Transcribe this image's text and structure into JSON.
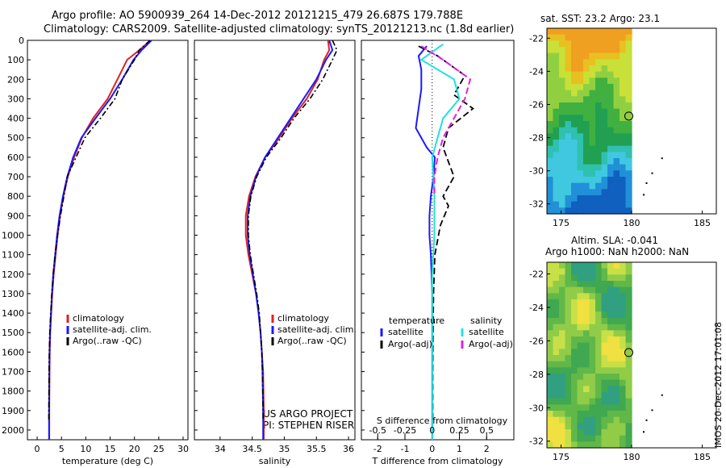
{
  "header": {
    "line1": "Argo profile: AO 5900939_264 14-Dec-2012 20121215_479 26.687S 179.788E",
    "line2": "Climatology: CARS2009. Satellite-adjusted climatology: synTS_20121213.nc (1.8d earlier)"
  },
  "credits": {
    "project": "US ARGO PROJECT",
    "pi": "PI: STEPHEN RISER",
    "stamp": "IMOS 20-Dec-2012 17:01:08"
  },
  "colors": {
    "climatology": "#e02020",
    "satellite": "#1a1aff",
    "argo": "#000000",
    "sal_sat": "#22e0e0",
    "sal_argo": "#e020e0"
  },
  "chart_data": [
    {
      "type": "line",
      "xlabel": "temperature (deg C)",
      "ylim": [
        2050,
        0
      ],
      "xlim": [
        -2,
        31
      ],
      "xticks": [
        0,
        5,
        10,
        15,
        20,
        25,
        30
      ],
      "yticks": [
        0,
        100,
        200,
        300,
        400,
        500,
        600,
        700,
        800,
        900,
        1000,
        1100,
        1200,
        1300,
        1400,
        1500,
        1600,
        1700,
        1800,
        1900,
        2000
      ],
      "legend": [
        "climatology",
        "satellite-adj. clim.",
        "Argo(..raw -QC)"
      ],
      "series": [
        {
          "name": "climatology",
          "x": [
            23.3,
            21,
            18.5,
            16.5,
            14.5,
            11.5,
            9.2,
            7.6,
            6.3,
            5.4,
            4.7,
            4.2,
            3.8,
            3.4,
            3.1,
            2.9,
            2.7,
            2.6,
            2.55,
            2.5,
            2.5
          ],
          "y": [
            0,
            50,
            100,
            200,
            300,
            400,
            500,
            600,
            700,
            800,
            900,
            1000,
            1100,
            1200,
            1300,
            1400,
            1500,
            1600,
            1700,
            1900,
            2050
          ]
        },
        {
          "name": "satellite-adj. clim.",
          "x": [
            23.5,
            21.5,
            19.8,
            17.5,
            15,
            12,
            9.1,
            7.4,
            6.2,
            5.3,
            4.6,
            4.1,
            3.7,
            3.3,
            3.05,
            2.85,
            2.65,
            2.55,
            2.5,
            2.45,
            2.45
          ],
          "y": [
            0,
            50,
            100,
            200,
            300,
            400,
            500,
            600,
            700,
            800,
            900,
            1000,
            1100,
            1200,
            1300,
            1400,
            1500,
            1600,
            1700,
            1900,
            2050
          ]
        },
        {
          "name": "Argo(..raw -QC)",
          "x": [
            23.2,
            21,
            20,
            17.5,
            16,
            13,
            9.8,
            8,
            6.2,
            5.5,
            4.8,
            4.2,
            3.7,
            3.3,
            3.0,
            2.8,
            2.6,
            2.5,
            2.45,
            2.4
          ],
          "y": [
            0,
            50,
            100,
            200,
            300,
            400,
            500,
            600,
            700,
            800,
            900,
            1000,
            1100,
            1200,
            1300,
            1400,
            1500,
            1600,
            1700,
            1950
          ]
        }
      ]
    },
    {
      "type": "line",
      "xlabel": "salinity",
      "ylim": [
        2050,
        0
      ],
      "xlim": [
        33.6,
        36.1
      ],
      "xticks": [
        34,
        34.5,
        35,
        35.5,
        36
      ],
      "legend": [
        "climatology",
        "satellite-adj. clim.",
        "Argo(..raw -QC)"
      ],
      "series": [
        {
          "name": "climatology",
          "x": [
            35.68,
            35.7,
            35.62,
            35.52,
            35.35,
            35.12,
            34.92,
            34.7,
            34.55,
            34.45,
            34.4,
            34.4,
            34.44,
            34.5,
            34.56,
            34.6,
            34.63,
            34.65,
            34.67,
            34.68,
            34.68
          ],
          "y": [
            0,
            50,
            100,
            200,
            300,
            400,
            500,
            600,
            700,
            800,
            900,
            1000,
            1100,
            1200,
            1300,
            1400,
            1500,
            1600,
            1700,
            1900,
            2050
          ]
        },
        {
          "name": "satellite-adj. clim.",
          "x": [
            35.7,
            35.75,
            35.65,
            35.5,
            35.3,
            35.1,
            34.9,
            34.7,
            34.56,
            34.47,
            34.43,
            34.43,
            34.46,
            34.51,
            34.56,
            34.6,
            34.63,
            34.65,
            34.66,
            34.67,
            34.67
          ],
          "y": [
            0,
            50,
            100,
            200,
            300,
            400,
            500,
            600,
            700,
            800,
            900,
            1000,
            1100,
            1200,
            1300,
            1400,
            1500,
            1600,
            1700,
            1900,
            2050
          ]
        },
        {
          "name": "Argo(..raw -QC)",
          "x": [
            35.75,
            35.82,
            35.75,
            35.6,
            35.4,
            35.15,
            34.95,
            34.72,
            34.57,
            34.48,
            34.44,
            34.44,
            34.47,
            34.52,
            34.57,
            34.61,
            34.63,
            34.65,
            34.66,
            34.67
          ],
          "y": [
            0,
            50,
            100,
            200,
            300,
            400,
            500,
            600,
            700,
            800,
            900,
            1000,
            1100,
            1200,
            1300,
            1400,
            1500,
            1600,
            1700,
            1950
          ]
        }
      ]
    },
    {
      "type": "line",
      "xlabel": "T difference from climatology",
      "x2label": "S difference from climatology",
      "ylim": [
        2050,
        0
      ],
      "xlim": [
        -2.6,
        3
      ],
      "xticks": [
        -2,
        -1,
        0,
        1,
        2
      ],
      "x2ticks": [
        -0.5,
        -0.25,
        0,
        0.25,
        0.5
      ],
      "legend_headers": [
        "temperature",
        "salinity"
      ],
      "legend": [
        "satellite",
        "Argo(-adj)",
        "satellite",
        "Argo(-adj)"
      ],
      "series": [
        {
          "name": "temperature satellite",
          "x": [
            -0.2,
            -0.5,
            -0.4,
            -0.4,
            -0.5,
            -0.6,
            -0.2,
            0.1,
            0.05,
            -0.05,
            -0.1,
            -0.1,
            -0.05,
            0,
            0,
            0,
            0,
            0,
            0
          ],
          "y": [
            30,
            80,
            150,
            250,
            350,
            450,
            550,
            600,
            700,
            800,
            900,
            1000,
            1100,
            1300,
            1500,
            1700,
            1900,
            2050,
            2050
          ]
        },
        {
          "name": "temperature Argo(-adj)",
          "x": [
            -0.5,
            0.2,
            1.2,
            0.8,
            1.5,
            0.6,
            0.4,
            0.8,
            0.4,
            0.6,
            0.3,
            0.1,
            0.05,
            0.03,
            0.02,
            0.02
          ],
          "y": [
            30,
            80,
            180,
            280,
            350,
            450,
            550,
            700,
            800,
            850,
            950,
            1100,
            1300,
            1500,
            1700,
            1950
          ]
        },
        {
          "name": "salinity satellite",
          "x": [
            0.1,
            -0.1,
            0.2,
            0.25,
            0.1,
            0.05,
            0,
            0.02,
            0.02,
            0,
            0,
            0,
            0
          ],
          "y": [
            20,
            100,
            200,
            300,
            400,
            500,
            600,
            800,
            1000,
            1200,
            1500,
            1800,
            2050
          ]
        },
        {
          "name": "salinity Argo(-adj)",
          "x": [
            -0.1,
            0.1,
            0.35,
            0.3,
            0.2,
            0.1,
            0.05,
            0.02,
            0.02
          ],
          "y": [
            30,
            100,
            200,
            300,
            400,
            500,
            600,
            700,
            800
          ]
        }
      ]
    },
    {
      "type": "heatmap",
      "title": "sat. SST: 23.2  Argo: 23.1",
      "xlim": [
        174,
        186
      ],
      "ylim": [
        -32.6,
        -21.4
      ],
      "xticks": [
        175,
        180,
        185
      ],
      "yticks": [
        -22,
        -24,
        -26,
        -28,
        -30,
        -32
      ],
      "marker": {
        "lon": 179.8,
        "lat": -26.7
      }
    },
    {
      "type": "heatmap",
      "title": "Altim. SLA: -0.041",
      "subtitle": "Argo h1000: NaN h2000: NaN",
      "xlim": [
        174,
        186
      ],
      "ylim": [
        -32.4,
        -21.3
      ],
      "xticks": [
        175,
        180,
        185
      ],
      "yticks": [
        -22,
        -24,
        -26,
        -28,
        -30,
        -32
      ],
      "marker": {
        "lon": 179.8,
        "lat": -26.7
      }
    }
  ]
}
